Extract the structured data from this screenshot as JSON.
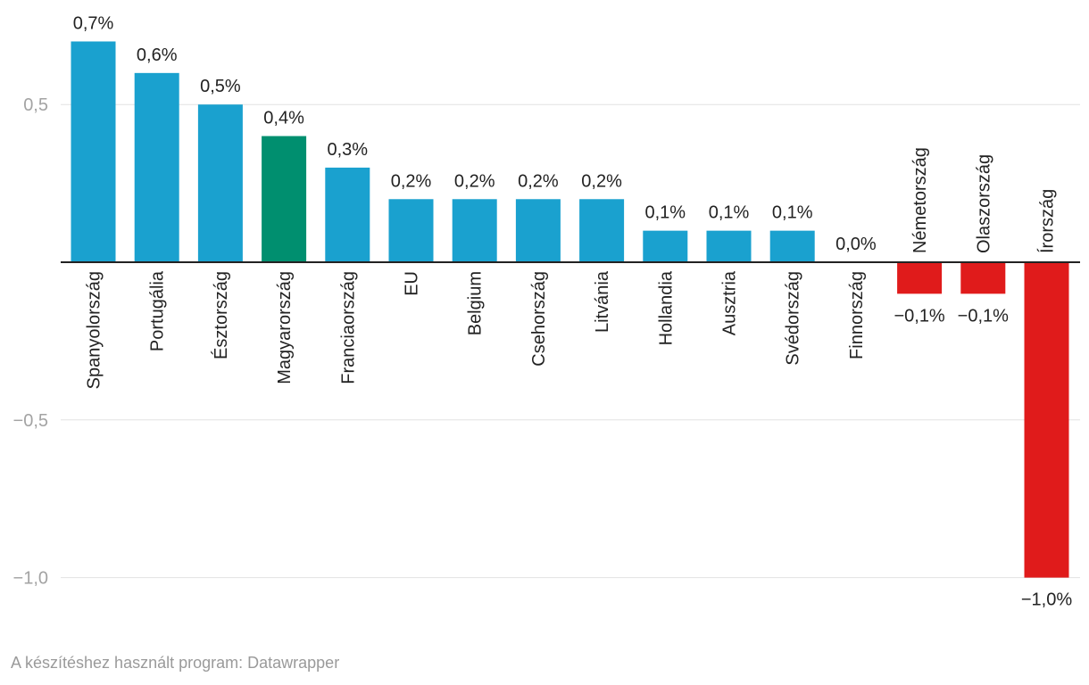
{
  "chart_data": {
    "type": "bar",
    "categories": [
      "Spanyolország",
      "Portugália",
      "Észtország",
      "Magyarország",
      "Franciaország",
      "EU",
      "Belgium",
      "Csehország",
      "Litvánia",
      "Hollandia",
      "Ausztria",
      "Svédország",
      "Finnország",
      "Németország",
      "Olaszország",
      "Írország"
    ],
    "values": [
      0.7,
      0.6,
      0.5,
      0.4,
      0.3,
      0.2,
      0.2,
      0.2,
      0.2,
      0.1,
      0.1,
      0.1,
      0.0,
      -0.1,
      -0.1,
      -1.0
    ],
    "value_labels": [
      "0,7%",
      "0,6%",
      "0,5%",
      "0,4%",
      "0,3%",
      "0,2%",
      "0,2%",
      "0,2%",
      "0,2%",
      "0,1%",
      "0,1%",
      "0,1%",
      "0,0%",
      "−0,1%",
      "−0,1%",
      "−1,0%"
    ],
    "colors": [
      "#1aa1cf",
      "#1aa1cf",
      "#1aa1cf",
      "#008f6f",
      "#1aa1cf",
      "#1aa1cf",
      "#1aa1cf",
      "#1aa1cf",
      "#1aa1cf",
      "#1aa1cf",
      "#1aa1cf",
      "#1aa1cf",
      "#1aa1cf",
      "#e01b1b",
      "#e01b1b",
      "#e01b1b"
    ],
    "y_ticks": [
      {
        "value": 0.5,
        "label": "0,5"
      },
      {
        "value": -0.5,
        "label": "−0,5"
      },
      {
        "value": -1.0,
        "label": "−1,0"
      }
    ],
    "ylim": [
      -1.0,
      0.7
    ],
    "title": "",
    "xlabel": "",
    "ylabel": ""
  },
  "footer": "A készítéshez használt program: Datawrapper"
}
